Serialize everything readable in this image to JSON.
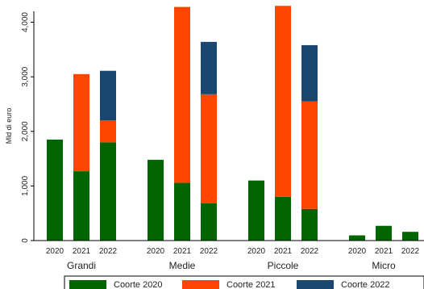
{
  "chart_data": {
    "type": "bar",
    "stacked": true,
    "ylabel": "Mld di euro",
    "ylim": [
      0,
      4200
    ],
    "yticks": [
      0,
      1000,
      2000,
      3000,
      4000
    ],
    "ytick_labels": [
      "0",
      "1,000",
      "2,000",
      "3,000",
      "4,000"
    ],
    "grid": false,
    "legend_position": "bottom",
    "groups": [
      {
        "name": "Grandi",
        "categories": [
          "2020",
          "2021",
          "2022"
        ]
      },
      {
        "name": "Medie",
        "categories": [
          "2020",
          "2021",
          "2022"
        ]
      },
      {
        "name": "Piccole",
        "categories": [
          "2020",
          "2021",
          "2022"
        ]
      },
      {
        "name": "Micro",
        "categories": [
          "2020",
          "2021",
          "2022"
        ]
      }
    ],
    "series": [
      {
        "name": "Coorte 2020",
        "color": "#006400",
        "values": [
          [
            1850,
            1270,
            1800
          ],
          [
            1480,
            1060,
            680
          ],
          [
            1100,
            800,
            580
          ],
          [
            95,
            270,
            160
          ]
        ]
      },
      {
        "name": "Coorte 2021",
        "color": "#ff4500",
        "values": [
          [
            0,
            1780,
            400
          ],
          [
            0,
            3220,
            2000
          ],
          [
            0,
            3500,
            1970
          ],
          [
            0,
            0,
            0
          ]
        ]
      },
      {
        "name": "Coorte 2022",
        "color": "#1a476f",
        "values": [
          [
            0,
            0,
            910
          ],
          [
            0,
            0,
            960
          ],
          [
            0,
            0,
            1030
          ],
          [
            0,
            0,
            0
          ]
        ]
      }
    ]
  }
}
